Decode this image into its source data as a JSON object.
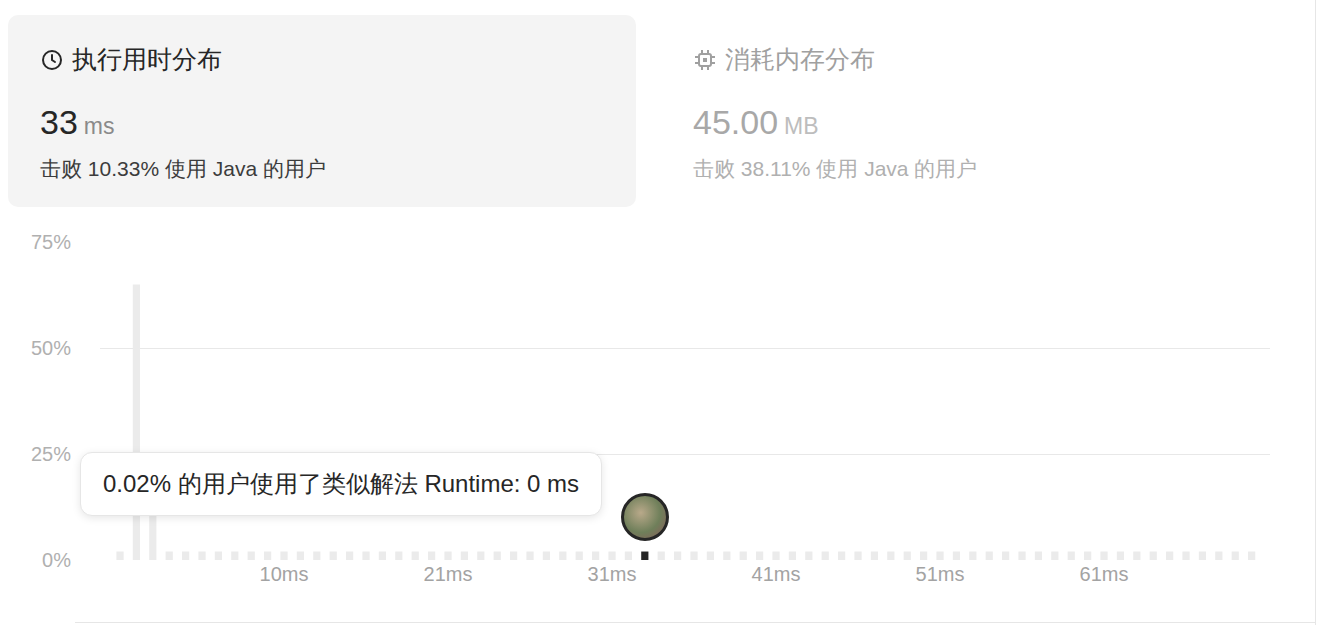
{
  "panels": [
    {
      "title": "执行用时分布",
      "value": "33",
      "unit": "ms",
      "beats": "击败 10.33% 使用 Java 的用户"
    },
    {
      "title": "消耗内存分布",
      "value": "45.00",
      "unit": "MB",
      "beats": "击败 38.11% 使用 Java 的用户"
    }
  ],
  "tooltip": "0.02% 的用户使用了类似解法 Runtime: 0 ms",
  "chart_data": {
    "type": "bar",
    "categories": [
      null,
      null,
      null,
      null,
      null,
      null,
      null,
      null,
      null,
      null,
      "10ms",
      null,
      null,
      null,
      null,
      null,
      null,
      null,
      null,
      null,
      "21ms",
      null,
      null,
      null,
      null,
      null,
      null,
      null,
      null,
      null,
      "31ms",
      null,
      null,
      null,
      null,
      null,
      null,
      null,
      null,
      null,
      "41ms",
      null,
      null,
      null,
      null,
      null,
      null,
      null,
      null,
      null,
      "51ms",
      null,
      null,
      null,
      null,
      null,
      null,
      null,
      null,
      null,
      "61ms",
      null,
      null,
      null,
      null,
      null,
      null,
      null,
      null,
      null
    ],
    "values": [
      2,
      65,
      20,
      2,
      2,
      2,
      2,
      2,
      2,
      2,
      2,
      2,
      2,
      2,
      2,
      2,
      2,
      2,
      2,
      2,
      2,
      2,
      2,
      2,
      2,
      2,
      2,
      2,
      2,
      2,
      2,
      2,
      2,
      2,
      2,
      2,
      2,
      2,
      2,
      2,
      2,
      2,
      2,
      2,
      2,
      2,
      2,
      2,
      2,
      2,
      2,
      2,
      2,
      2,
      2,
      2,
      2,
      2,
      2,
      2,
      2,
      2,
      2,
      2,
      2,
      2,
      2,
      2,
      2,
      2
    ],
    "colors": [
      "#ebebeb",
      "#ebebeb",
      "#ebebeb",
      "#ebebeb",
      "#ebebeb",
      "#ebebeb",
      "#ebebeb",
      "#ebebeb",
      "#ebebeb",
      "#ebebeb",
      "#ebebeb",
      "#ebebeb",
      "#ebebeb",
      "#ebebeb",
      "#ebebeb",
      "#ebebeb",
      "#ebebeb",
      "#ebebeb",
      "#ebebeb",
      "#ebebeb",
      "#ebebeb",
      "#ebebeb",
      "#ebebeb",
      "#ebebeb",
      "#ebebeb",
      "#ebebeb",
      "#ebebeb",
      "#ebebeb",
      "#ebebeb",
      "#ebebeb",
      "#ebebeb",
      "#ebebeb",
      "#262626",
      "#ebebeb",
      "#ebebeb",
      "#ebebeb",
      "#ebebeb",
      "#ebebeb",
      "#ebebeb",
      "#ebebeb",
      "#ebebeb",
      "#ebebeb",
      "#ebebeb",
      "#ebebeb",
      "#ebebeb",
      "#ebebeb",
      "#ebebeb",
      "#ebebeb",
      "#ebebeb",
      "#ebebeb",
      "#ebebeb",
      "#ebebeb",
      "#ebebeb",
      "#ebebeb",
      "#ebebeb",
      "#ebebeb",
      "#ebebeb",
      "#ebebeb",
      "#ebebeb",
      "#ebebeb",
      "#ebebeb",
      "#ebebeb",
      "#ebebeb",
      "#ebebeb",
      "#ebebeb",
      "#ebebeb",
      "#ebebeb",
      "#ebebeb",
      "#ebebeb",
      "#ebebeb"
    ],
    "ylim": [
      0,
      75
    ],
    "yticks": [
      {
        "value": 0,
        "label": "0%"
      },
      {
        "value": 25,
        "label": "25%"
      },
      {
        "value": 50,
        "label": "50%"
      },
      {
        "value": 75,
        "label": "75%"
      }
    ],
    "grid": true
  }
}
